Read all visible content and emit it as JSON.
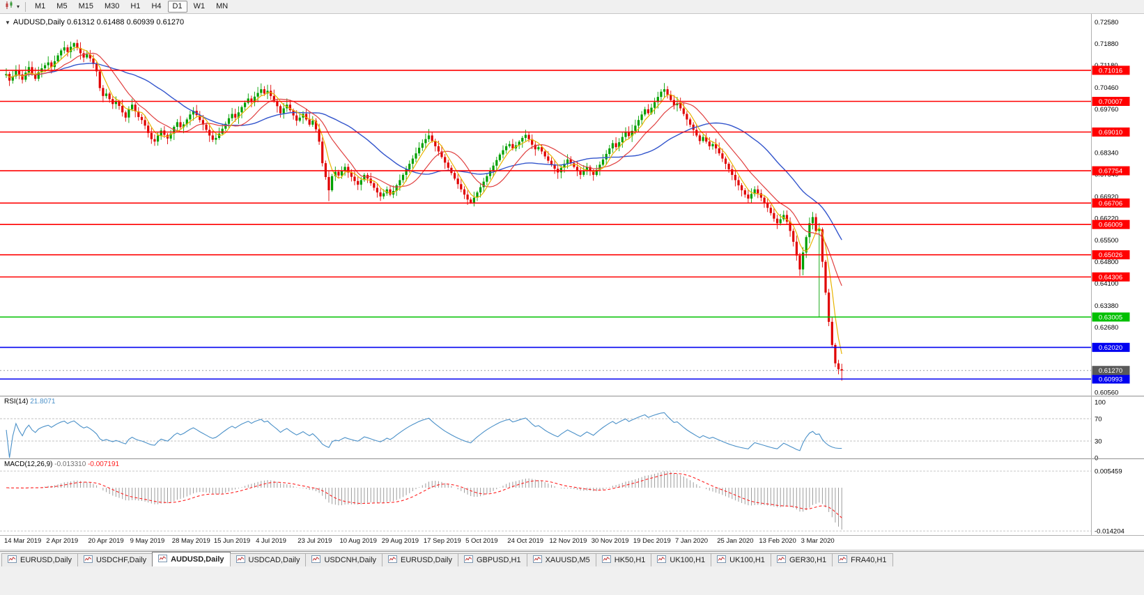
{
  "window": {
    "background": "#f0f0f0"
  },
  "toolbar": {
    "timeframes": [
      "M1",
      "M5",
      "M15",
      "M30",
      "H1",
      "H4",
      "D1",
      "W1",
      "MN"
    ],
    "active_timeframe": "D1",
    "dropdown_glyph": "▾"
  },
  "chart": {
    "title_symbol": "AUDUSD,Daily",
    "title_ohlc": "0.61312 0.61488 0.60939 0.61270",
    "collapse_glyph": "▼",
    "price_axis_ticks": [
      "0.72580",
      "0.71880",
      "0.71180",
      "0.70460",
      "0.69760",
      "0.69060",
      "0.68340",
      "0.67640",
      "0.66920",
      "0.66220",
      "0.65500",
      "0.64800",
      "0.64100",
      "0.63380",
      "0.62680",
      "0.60560"
    ],
    "hlines": [
      {
        "price": 0.71016,
        "label": "0.71016",
        "color": "#FF0000"
      },
      {
        "price": 0.70007,
        "label": "0.70007",
        "color": "#FF0000"
      },
      {
        "price": 0.6901,
        "label": "0.69010",
        "color": "#FF0000"
      },
      {
        "price": 0.67754,
        "label": "0.67754",
        "color": "#FF0000"
      },
      {
        "price": 0.66706,
        "label": "0.66706",
        "color": "#FF0000"
      },
      {
        "price": 0.66009,
        "label": "0.66009",
        "color": "#FF0000"
      },
      {
        "price": 0.65026,
        "label": "0.65026",
        "color": "#FF0000"
      },
      {
        "price": 0.64306,
        "label": "0.64306",
        "color": "#FF0000"
      },
      {
        "price": 0.63005,
        "label": "0.63005",
        "color": "#00C000"
      },
      {
        "price": 0.6202,
        "label": "0.62020",
        "color": "#0000F0"
      },
      {
        "price": 0.60993,
        "label": "0.60993",
        "color": "#0000F0"
      }
    ],
    "current_price": {
      "label": "0.61270",
      "box_color": "#5a5a5a",
      "line_color": "#9aa0a6"
    },
    "colors": {
      "up": "#00A000",
      "down": "#E00000",
      "ma_fast": "#E8B400",
      "ma_mid": "#E04040",
      "ma_slow": "#3355CC"
    }
  },
  "rsi": {
    "name": "RSI(14)",
    "value": "21.8071",
    "color": "#4A90C8",
    "axis_labels": [
      "100",
      "70",
      "30",
      "0"
    ],
    "dashed_levels": [
      70,
      30
    ]
  },
  "macd": {
    "name": "MACD(12,26,9)",
    "value_main": "-0.013310",
    "value_signal": "-0.007191",
    "axis_top": "0.005459",
    "axis_bottom": "-0.014204",
    "hist_color": "#9c9c9c",
    "signal_color": "#FF2020"
  },
  "tabs": {
    "items": [
      "EURUSD,Daily",
      "USDCHF,Daily",
      "AUDUSD,Daily",
      "USDCAD,Daily",
      "USDCNH,Daily",
      "EURUSD,Daily",
      "GBPUSD,H1",
      "XAUUSD,M5",
      "HK50,H1",
      "UK100,H1",
      "UK100,H1",
      "GER30,H1",
      "FRA40,H1"
    ],
    "active_index": 2
  },
  "chart_data": {
    "type": "candlestick",
    "symbol": "AUDUSD",
    "timeframe": "Daily",
    "current_bar": {
      "open": 0.61312,
      "high": 0.61488,
      "low": 0.60939,
      "close": 0.6127
    },
    "visible_price_range": [
      0.6045,
      0.7285
    ],
    "x_labels": [
      "14 Mar 2019",
      "2 Apr 2019",
      "20 Apr 2019",
      "9 May 2019",
      "28 May 2019",
      "15 Jun 2019",
      "4 Jul 2019",
      "23 Jul 2019",
      "10 Aug 2019",
      "29 Aug 2019",
      "17 Sep 2019",
      "5 Oct 2019",
      "24 Oct 2019",
      "12 Nov 2019",
      "30 Nov 2019",
      "19 Dec 2019",
      "7 Jan 2020",
      "25 Jan 2020",
      "13 Feb 2020",
      "3 Mar 2020"
    ],
    "candles_per_label": 13,
    "first_open": 0.7085,
    "closes": [
      0.709,
      0.7068,
      0.7082,
      0.7103,
      0.7088,
      0.7071,
      0.7094,
      0.7112,
      0.709,
      0.7074,
      0.7096,
      0.7108,
      0.7118,
      0.7127,
      0.7112,
      0.7131,
      0.715,
      0.7166,
      0.7176,
      0.7161,
      0.7178,
      0.719,
      0.7174,
      0.7157,
      0.7143,
      0.7153,
      0.714,
      0.7122,
      0.7098,
      0.7044,
      0.7018,
      0.7026,
      0.7008,
      0.6992,
      0.7,
      0.6986,
      0.6965,
      0.6948,
      0.6975,
      0.699,
      0.6968,
      0.695,
      0.694,
      0.6922,
      0.6898,
      0.6878,
      0.687,
      0.689,
      0.6906,
      0.6892,
      0.688,
      0.6896,
      0.6918,
      0.6933,
      0.6917,
      0.6926,
      0.6942,
      0.6958,
      0.697,
      0.6956,
      0.694,
      0.6925,
      0.6908,
      0.689,
      0.6876,
      0.6882,
      0.6896,
      0.6912,
      0.6928,
      0.6946,
      0.696,
      0.6948,
      0.6965,
      0.6982,
      0.6996,
      0.701,
      0.6998,
      0.7016,
      0.7028,
      0.704,
      0.7026,
      0.7035,
      0.7018,
      0.7002,
      0.6985,
      0.6962,
      0.6978,
      0.699,
      0.6972,
      0.6955,
      0.6938,
      0.6948,
      0.696,
      0.6942,
      0.6925,
      0.6938,
      0.691,
      0.687,
      0.68,
      0.6755,
      0.6712,
      0.6758,
      0.6772,
      0.676,
      0.6775,
      0.6788,
      0.677,
      0.6756,
      0.6742,
      0.673,
      0.6745,
      0.6762,
      0.675,
      0.6735,
      0.672,
      0.6705,
      0.6692,
      0.6702,
      0.6715,
      0.6698,
      0.671,
      0.6728,
      0.6745,
      0.6762,
      0.678,
      0.6798,
      0.6815,
      0.6832,
      0.685,
      0.6865,
      0.6878,
      0.689,
      0.6872,
      0.6855,
      0.6838,
      0.682,
      0.6802,
      0.6785,
      0.6768,
      0.675,
      0.6732,
      0.6715,
      0.6698,
      0.6682,
      0.667,
      0.6688,
      0.6705,
      0.6722,
      0.674,
      0.6758,
      0.6775,
      0.6792,
      0.681,
      0.6828,
      0.6842,
      0.6855,
      0.6862,
      0.6848,
      0.6858,
      0.687,
      0.6882,
      0.6892,
      0.6878,
      0.686,
      0.6845,
      0.6852,
      0.6838,
      0.6822,
      0.6808,
      0.6795,
      0.6782,
      0.677,
      0.6785,
      0.6798,
      0.6812,
      0.68,
      0.6788,
      0.6775,
      0.6762,
      0.6775,
      0.6788,
      0.6775,
      0.6762,
      0.6778,
      0.6795,
      0.6812,
      0.683,
      0.6848,
      0.6865,
      0.6852,
      0.6868,
      0.6885,
      0.6902,
      0.6888,
      0.6905,
      0.6922,
      0.694,
      0.6958,
      0.6975,
      0.6962,
      0.698,
      0.6998,
      0.7015,
      0.7032,
      0.704,
      0.7022,
      0.7005,
      0.6988,
      0.6995,
      0.6978,
      0.696,
      0.6942,
      0.6925,
      0.6908,
      0.689,
      0.6872,
      0.6885,
      0.687,
      0.6855,
      0.6862,
      0.6848,
      0.6832,
      0.6815,
      0.6798,
      0.678,
      0.6762,
      0.6745,
      0.6728,
      0.6712,
      0.6698,
      0.6685,
      0.67,
      0.6715,
      0.6702,
      0.6688,
      0.6672,
      0.6655,
      0.6638,
      0.662,
      0.6605,
      0.6618,
      0.6632,
      0.661,
      0.658,
      0.6545,
      0.65,
      0.6455,
      0.651,
      0.656,
      0.6605,
      0.6625,
      0.658,
      0.6585,
      0.648,
      0.638,
      0.6285,
      0.621,
      0.615,
      0.6131,
      0.6127
    ],
    "candle_overrides": {
      "21": {
        "high": 0.7192
      },
      "100": {
        "low": 0.6677
      },
      "144": {
        "low": 0.6668
      },
      "246": {
        "low": 0.6434
      },
      "252": {
        "low": 0.63
      },
      "259": {
        "open": 0.61312,
        "high": 0.61488,
        "low": 0.60939,
        "close": 0.6127
      }
    },
    "indicators": {
      "ma_periods": {
        "fast": 5,
        "mid": 13,
        "slow": 34
      },
      "rsi_period": 14,
      "rsi_last": 21.8071,
      "macd": {
        "fast": 12,
        "slow": 26,
        "signal": 9,
        "last_main": -0.01331,
        "last_signal": -0.007191
      }
    },
    "hline_levels": {
      "red": [
        0.71016,
        0.70007,
        0.6901,
        0.67754,
        0.66706,
        0.66009,
        0.65026,
        0.64306
      ],
      "green": [
        0.63005
      ],
      "blue": [
        0.6202,
        0.60993
      ]
    }
  }
}
